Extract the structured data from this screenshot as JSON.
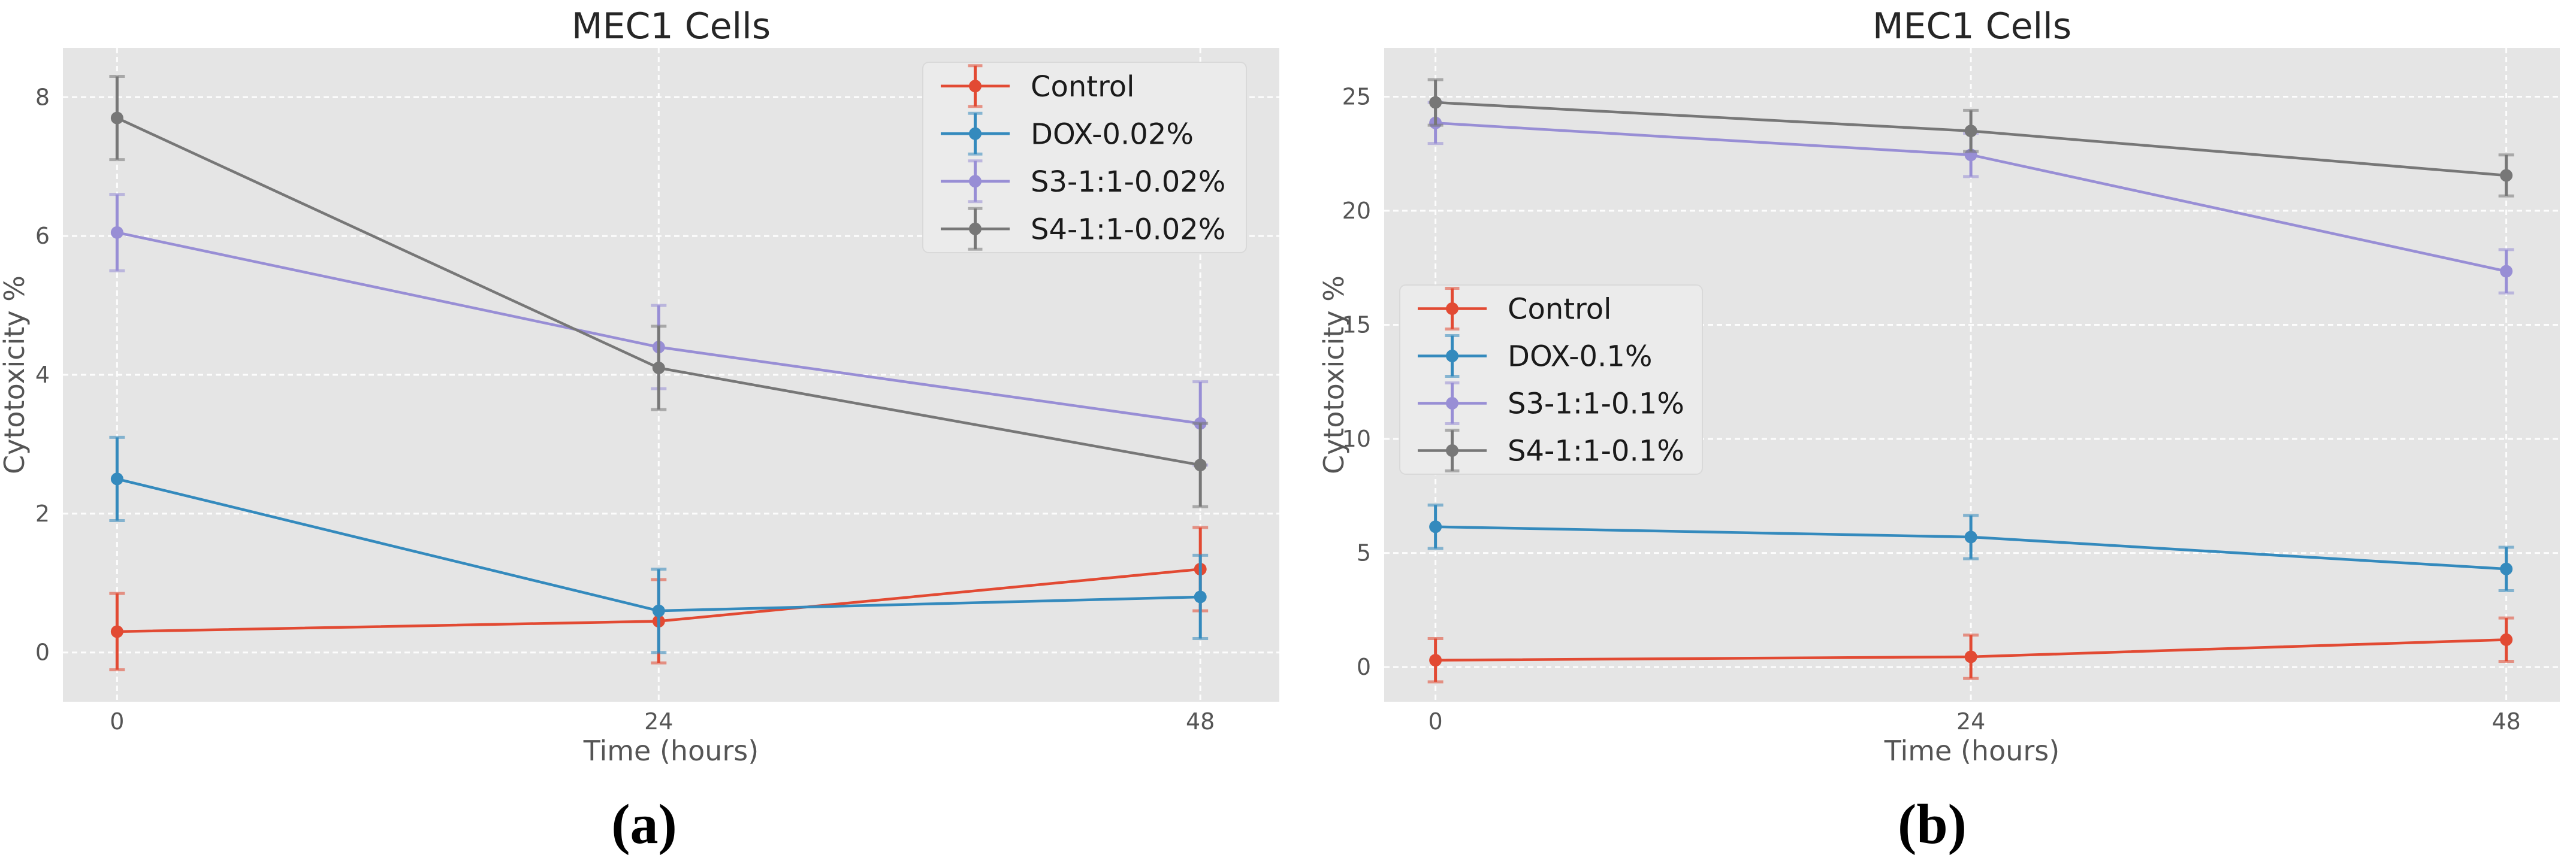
{
  "captions": {
    "a": "(a)",
    "b": "(b)"
  },
  "palette": {
    "red": "#E24A33",
    "blue": "#348ABD",
    "purple": "#988ED5",
    "gray": "#777777",
    "plot_bg": "#E5E5E5",
    "grid": "#FFFFFF",
    "tick_color": "#555555",
    "label_color": "#555555",
    "title_color": "#262626",
    "legend_bg": "#EBEBEB",
    "legend_border": "#D9D9D9",
    "legend_text": "#1A1A1A"
  },
  "chart_data": [
    {
      "id": "a",
      "type": "line",
      "title": "MEC1 Cells",
      "xlabel": "Time (hours)",
      "ylabel": "Cytotoxicity %",
      "x": [
        0,
        24,
        48
      ],
      "xticks": [
        0,
        24,
        48
      ],
      "yticks": [
        0,
        2,
        4,
        6,
        8
      ],
      "xlim": [
        -2.4,
        51.5
      ],
      "ylim": [
        -0.71,
        8.71
      ],
      "grid": true,
      "legend_position": "upper right",
      "series": [
        {
          "name": "Control",
          "color_key": "red",
          "values": [
            0.3,
            0.45,
            1.2
          ],
          "errors": [
            0.55,
            0.6,
            0.6
          ]
        },
        {
          "name": "DOX-0.02%",
          "color_key": "blue",
          "values": [
            2.5,
            0.6,
            0.8
          ],
          "errors": [
            0.6,
            0.6,
            0.6
          ]
        },
        {
          "name": "S3-1:1-0.02%",
          "color_key": "purple",
          "values": [
            6.05,
            4.4,
            3.3
          ],
          "errors": [
            0.55,
            0.6,
            0.6
          ]
        },
        {
          "name": "S4-1:1-0.02%",
          "color_key": "gray",
          "values": [
            7.7,
            4.1,
            2.7
          ],
          "errors": [
            0.6,
            0.6,
            0.6
          ]
        }
      ]
    },
    {
      "id": "b",
      "type": "line",
      "title": "MEC1 Cells",
      "xlabel": "Time (hours)",
      "ylabel": "Cytotoxicity %",
      "x": [
        0,
        24,
        48
      ],
      "xticks": [
        0,
        24,
        48
      ],
      "yticks": [
        0,
        5,
        10,
        15,
        20,
        25
      ],
      "xlim": [
        -2.3,
        50.4
      ],
      "ylim": [
        -1.52,
        27.14
      ],
      "grid": true,
      "legend_position": "center left",
      "series": [
        {
          "name": "Control",
          "color_key": "red",
          "values": [
            0.3,
            0.45,
            1.2
          ],
          "errors": [
            0.95,
            0.95,
            0.95
          ]
        },
        {
          "name": "DOX-0.1%",
          "color_key": "blue",
          "values": [
            6.15,
            5.7,
            4.3
          ],
          "errors": [
            0.95,
            0.95,
            0.95
          ]
        },
        {
          "name": "S3-1:1-0.1%",
          "color_key": "purple",
          "values": [
            23.85,
            22.45,
            17.35
          ],
          "errors": [
            0.9,
            0.95,
            0.95
          ]
        },
        {
          "name": "S4-1:1-0.1%",
          "color_key": "gray",
          "values": [
            24.75,
            23.5,
            21.55
          ],
          "errors": [
            1.0,
            0.9,
            0.9
          ]
        }
      ]
    }
  ]
}
